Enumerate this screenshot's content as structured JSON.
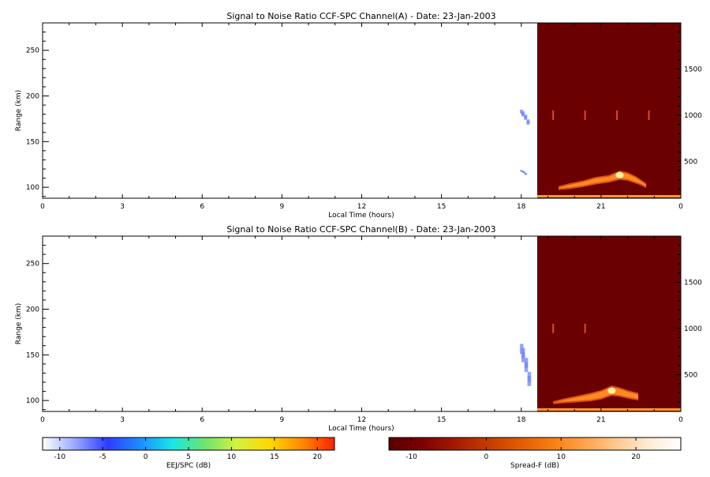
{
  "colors": {
    "background": "#ffffff",
    "spread_f_fill": "#6b0000",
    "echo_core": "#fff2a0",
    "echo_mid": "#ff8a1e",
    "echo_edge": "#d9501a",
    "bottom_band": "#ff9a30",
    "ejj_echo": "#6f86ff",
    "axis": "#000000"
  },
  "chart_data": [
    {
      "type": "heatmap",
      "title": "Signal to Noise Ratio CCF-SPC Channel(A) - Date: 23-Jan-2003",
      "xlabel": "Local Time (hours)",
      "ylabel": "Range (km)",
      "x_ticks": [
        "0",
        "3",
        "6",
        "9",
        "12",
        "15",
        "18",
        "21",
        "0"
      ],
      "y_ticks": [
        "100",
        "150",
        "200",
        "250"
      ],
      "y2_ticks": [
        "500",
        "1000",
        "1500"
      ],
      "xlim": [
        0,
        24
      ],
      "ylim": [
        88,
        280
      ],
      "y2lim": [
        100,
        2000
      ],
      "spread_f_region": {
        "x_start": 18.6,
        "x_end": 24
      },
      "ejj_echo_patches": [
        {
          "x": [
            17.95,
            18.3
          ],
          "y": [
            168,
            185
          ],
          "intensity_db": -8
        },
        {
          "x": [
            17.95,
            18.2
          ],
          "y": [
            112,
            119
          ],
          "intensity_db": -7
        }
      ],
      "spread_f_echo": {
        "x": [
          19.4,
          19.8,
          20.3,
          20.8,
          21.3,
          21.7,
          22.0,
          22.3,
          22.5,
          22.7
        ],
        "y2_top": [
          230,
          260,
          290,
          330,
          350,
          400,
          380,
          340,
          300,
          260
        ],
        "y2_bottom": [
          190,
          200,
          220,
          250,
          270,
          300,
          290,
          260,
          240,
          210
        ],
        "peak_db": 24
      },
      "spread_f_vertical_bins": [
        19.2,
        20.4,
        21.6,
        22.8
      ],
      "spread_f_bin_y2": 1000
    },
    {
      "type": "heatmap",
      "title": "Signal to Noise Ratio CCF-SPC Channel(B) - Date: 23-Jan-2003",
      "xlabel": "Local Time (hours)",
      "ylabel": "Range (km)",
      "x_ticks": [
        "0",
        "3",
        "6",
        "9",
        "12",
        "15",
        "18",
        "21",
        "0"
      ],
      "y_ticks": [
        "100",
        "150",
        "200",
        "250"
      ],
      "y2_ticks": [
        "500",
        "1000",
        "1500"
      ],
      "xlim": [
        0,
        24
      ],
      "ylim": [
        88,
        280
      ],
      "y2lim": [
        100,
        2000
      ],
      "spread_f_region": {
        "x_start": 18.6,
        "x_end": 24
      },
      "ejj_echo_patches": [
        {
          "x": [
            17.95,
            18.35
          ],
          "y": [
            118,
            162
          ],
          "intensity_db": -8
        }
      ],
      "spread_f_echo": {
        "x": [
          19.2,
          19.6,
          20.1,
          20.6,
          21.0,
          21.4,
          21.7,
          22.0,
          22.4
        ],
        "y2_top": [
          210,
          240,
          270,
          300,
          330,
          380,
          360,
          330,
          300
        ],
        "y2_bottom": [
          180,
          190,
          200,
          210,
          230,
          270,
          260,
          240,
          220
        ],
        "peak_db": 24
      },
      "spread_f_vertical_bins": [
        19.2,
        20.4
      ],
      "spread_f_bin_y2": 1000
    }
  ],
  "colorbars": [
    {
      "label": "EEJ/SPC (dB)",
      "ticks": [
        "-10",
        "-5",
        "0",
        "5",
        "10",
        "15",
        "20"
      ],
      "range": [
        -12,
        22
      ],
      "stops": [
        "#ffffff",
        "#9aa8ff",
        "#2d3dff",
        "#1e8cff",
        "#18e6e6",
        "#6ee46e",
        "#d6f040",
        "#ffd800",
        "#ff8a00",
        "#ff2000"
      ]
    },
    {
      "label": "Spread-F (dB)",
      "ticks": [
        "-10",
        "0",
        "10",
        "20"
      ],
      "range": [
        -13,
        26
      ],
      "stops": [
        "#5a0000",
        "#7a0000",
        "#a01a00",
        "#c23a00",
        "#e05a00",
        "#f67d12",
        "#ffa24a",
        "#ffc98e",
        "#ffebd4",
        "#ffffff"
      ]
    }
  ]
}
